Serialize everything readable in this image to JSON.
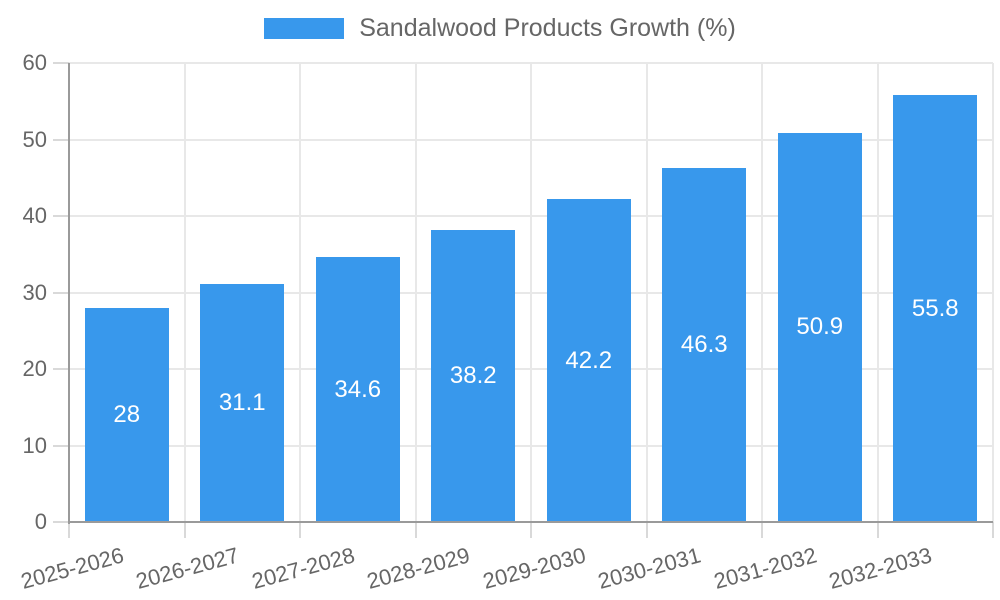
{
  "chart_data": {
    "type": "bar",
    "title": "",
    "legend_label": "Sandalwood Products Growth (%)",
    "categories": [
      "2025-2026",
      "2026-2027",
      "2027-2028",
      "2028-2029",
      "2029-2030",
      "2030-2031",
      "2031-2032",
      "2032-2033"
    ],
    "values": [
      28,
      31.1,
      34.6,
      38.2,
      42.2,
      46.3,
      50.9,
      55.8
    ],
    "value_labels": [
      "28",
      "31.1",
      "34.6",
      "38.2",
      "42.2",
      "46.3",
      "50.9",
      "55.8"
    ],
    "xlabel": "",
    "ylabel": "",
    "ylim": [
      0,
      60
    ],
    "yticks": [
      0,
      10,
      20,
      30,
      40,
      50,
      60
    ],
    "grid": true,
    "legend_position": "top-center",
    "value_label_position": "middle-of-bar",
    "x_tick_rotation_deg": -15,
    "colors": {
      "bar": "#3898EC",
      "value_label_text": "#FFFFFF",
      "tick_text": "#666666",
      "legend_text": "#666666",
      "axis_line": "#9A9A9A",
      "gridline": "#E8E8E8",
      "tick_mark": "#D9D9D9",
      "background": "#FFFFFF"
    }
  }
}
